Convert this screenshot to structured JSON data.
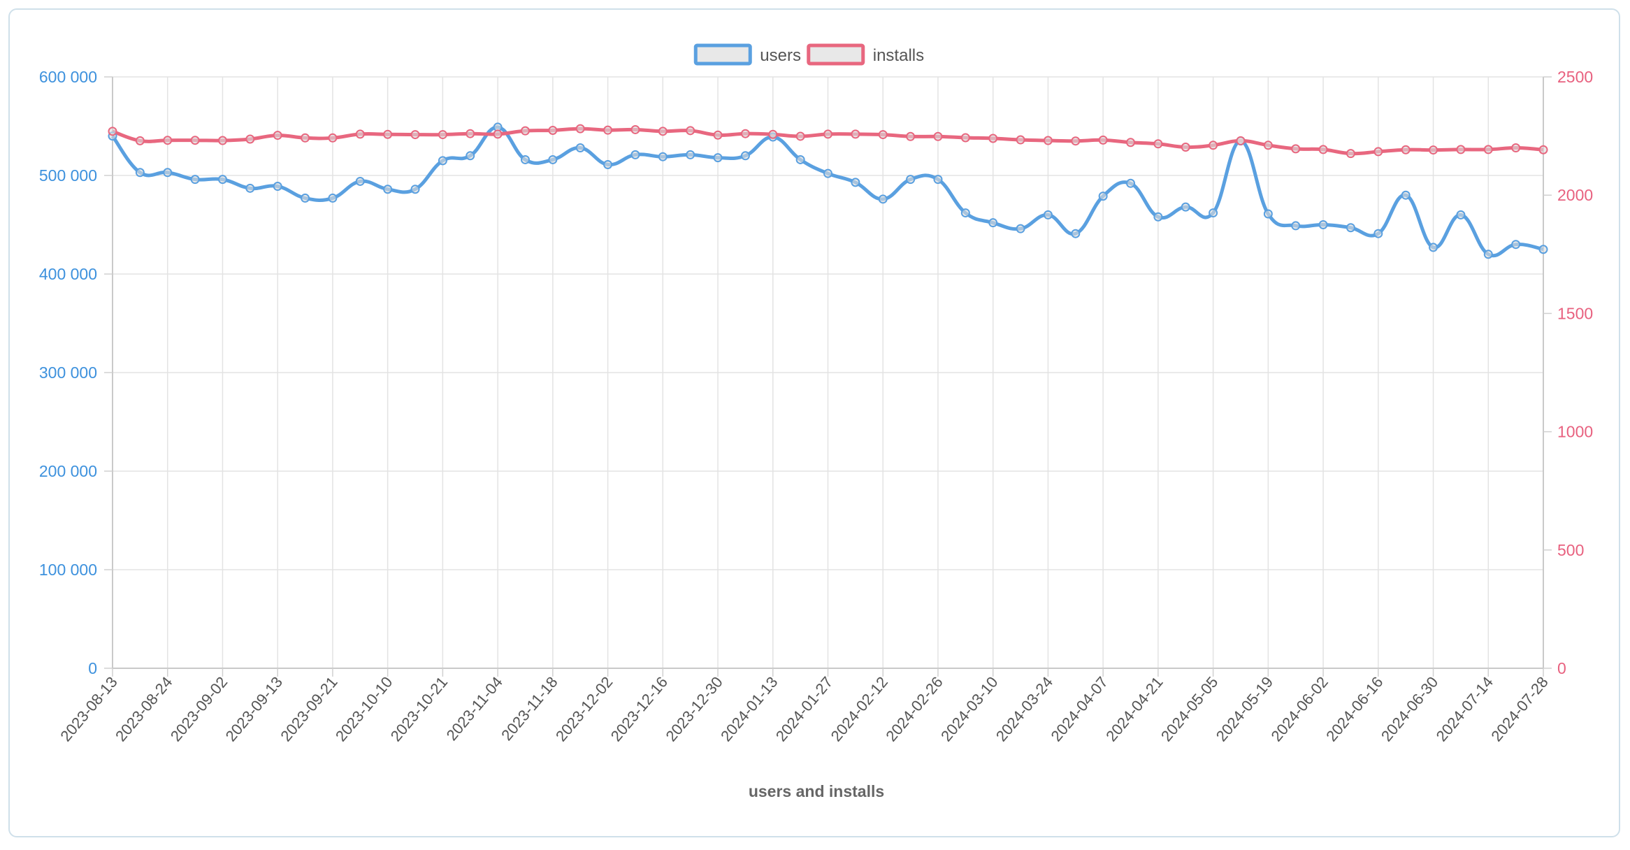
{
  "chart_data": {
    "type": "line",
    "title": "",
    "xlabel": "users and installs",
    "x": [
      "2023-08-13",
      "2023-08-18",
      "2023-08-24",
      "2023-08-29",
      "2023-09-02",
      "2023-09-07",
      "2023-09-13",
      "2023-09-16",
      "2023-09-21",
      "2023-09-26",
      "2023-10-10",
      "2023-10-14",
      "2023-10-21",
      "2023-10-28",
      "2023-11-04",
      "2023-11-11",
      "2023-11-18",
      "2023-11-25",
      "2023-12-02",
      "2023-12-09",
      "2023-12-16",
      "2023-12-23",
      "2023-12-30",
      "2024-01-06",
      "2024-01-13",
      "2024-01-20",
      "2024-01-27",
      "2024-02-04",
      "2024-02-12",
      "2024-02-19",
      "2024-02-26",
      "2024-03-03",
      "2024-03-10",
      "2024-03-17",
      "2024-03-24",
      "2024-03-31",
      "2024-04-07",
      "2024-04-14",
      "2024-04-21",
      "2024-04-28",
      "2024-05-05",
      "2024-05-12",
      "2024-05-19",
      "2024-05-26",
      "2024-06-02",
      "2024-06-09",
      "2024-06-16",
      "2024-06-23",
      "2024-06-30",
      "2024-07-07",
      "2024-07-14",
      "2024-07-21",
      "2024-07-28"
    ],
    "x_tick_labels": [
      "2023-08-13",
      "2023-08-24",
      "2023-09-02",
      "2023-09-13",
      "2023-09-21",
      "2023-10-10",
      "2023-10-21",
      "2023-11-04",
      "2023-11-18",
      "2023-12-02",
      "2023-12-16",
      "2023-12-30",
      "2024-01-13",
      "2024-01-27",
      "2024-02-12",
      "2024-02-26",
      "2024-03-10",
      "2024-03-24",
      "2024-04-07",
      "2024-04-21",
      "2024-05-05",
      "2024-05-19",
      "2024-06-02",
      "2024-06-16",
      "2024-06-30",
      "2024-07-14",
      "2024-07-28"
    ],
    "series": [
      {
        "name": "users",
        "axis": "left",
        "color": "#5aa0e0",
        "values": [
          540000,
          503000,
          503000,
          496000,
          496000,
          487000,
          489000,
          477000,
          477000,
          494000,
          486000,
          486000,
          515000,
          520000,
          549000,
          516000,
          516000,
          528000,
          511000,
          521000,
          519000,
          521000,
          518000,
          520000,
          539000,
          516000,
          502000,
          493000,
          476000,
          496000,
          496000,
          462000,
          452000,
          446000,
          460000,
          441000,
          479000,
          492000,
          458000,
          468000,
          462000,
          535000,
          461000,
          449000,
          450000,
          447000,
          441000,
          480000,
          427000,
          460000,
          420000,
          430000,
          425000
        ]
      },
      {
        "name": "installs",
        "axis": "right",
        "color": "#e8677f",
        "values": [
          2270,
          2230,
          2232,
          2232,
          2231,
          2237,
          2253,
          2242,
          2242,
          2258,
          2257,
          2256,
          2256,
          2260,
          2258,
          2272,
          2274,
          2281,
          2275,
          2277,
          2270,
          2273,
          2254,
          2260,
          2257,
          2249,
          2258,
          2258,
          2256,
          2248,
          2248,
          2243,
          2240,
          2234,
          2231,
          2229,
          2233,
          2223,
          2217,
          2203,
          2211,
          2230,
          2211,
          2196,
          2193,
          2176,
          2184,
          2192,
          2191,
          2193,
          2193,
          2200,
          2192
        ]
      }
    ],
    "y_left": {
      "ylim": [
        0,
        600000
      ],
      "ticks": [
        "0",
        "100 000",
        "200 000",
        "300 000",
        "400 000",
        "500 000",
        "600 000"
      ],
      "tick_values": [
        0,
        100000,
        200000,
        300000,
        400000,
        500000,
        600000
      ]
    },
    "y_right": {
      "ylim": [
        0,
        2500
      ],
      "ticks": [
        "0",
        "500",
        "1000",
        "1500",
        "2000",
        "2500"
      ],
      "tick_values": [
        0,
        500,
        1000,
        1500,
        2000,
        2500
      ]
    },
    "legend": {
      "position": "top-center",
      "items": [
        "users",
        "installs"
      ]
    },
    "grid": true
  }
}
